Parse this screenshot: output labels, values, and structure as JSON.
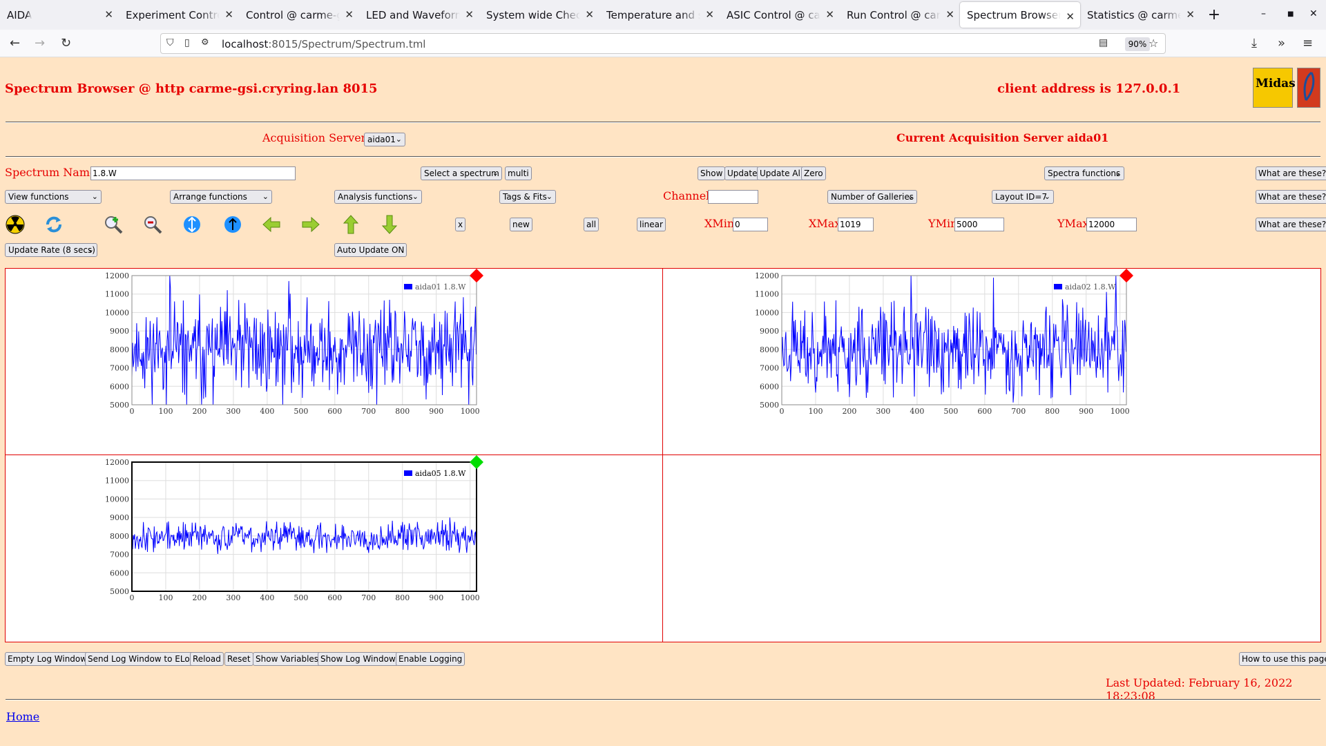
{
  "browser": {
    "tabs": [
      {
        "label": "AIDA",
        "active": false
      },
      {
        "label": "Experiment Control @ carme",
        "active": false
      },
      {
        "label": "Control @ carme-gsi",
        "active": false
      },
      {
        "label": "LED and Waveform control",
        "active": false
      },
      {
        "label": "System wide Checks @",
        "active": false
      },
      {
        "label": "Temperature and status",
        "active": false
      },
      {
        "label": "ASIC Control @ carme-gsi",
        "active": false
      },
      {
        "label": "Run Control @ carme-gsi",
        "active": false
      },
      {
        "label": "Spectrum Browser @ carme",
        "active": true
      },
      {
        "label": "Statistics @ carme-gsi",
        "active": false
      }
    ],
    "new_tab": "+",
    "url_host": "localhost",
    "url_rest": ":8015/Spectrum/Spectrum.tml",
    "zoom": "90%"
  },
  "header": {
    "title": "Spectrum Browser @ http carme-gsi.cryring.lan 8015",
    "client": "client address is 127.0.0.1",
    "logo_text": "Midas"
  },
  "servers": {
    "label": "Acquisition Servers",
    "selected": "aida01",
    "current": "Current Acquisition Server aida01"
  },
  "row1": {
    "spectrum_label": "Spectrum Name:",
    "spectrum_value": "1.8.W",
    "select_spectrum": "Select a spectrum",
    "multi": "multi",
    "show": "Show",
    "update": "Update",
    "update_all": "Update All",
    "zero": "Zero",
    "spectra_functions": "Spectra functions",
    "what": "What are these?"
  },
  "row2": {
    "view_functions": "View functions",
    "arrange_functions": "Arrange functions",
    "analysis_functions": "Analysis functions",
    "tags_fits": "Tags & Fits",
    "channel_label": "Channel:",
    "channel_value": "",
    "galleries": "Number of Galleries",
    "layout": "Layout ID=7",
    "what": "What are these?"
  },
  "row3": {
    "x": "x",
    "new": "new",
    "all": "all",
    "linear": "linear",
    "xmin_label": "XMin",
    "xmin": "0",
    "xmax_label": "XMax",
    "xmax": "1019",
    "ymin_label": "YMin",
    "ymin": "5000",
    "ymax_label": "YMax",
    "ymax": "12000",
    "what": "What are these?",
    "icons": [
      "radiation-icon",
      "refresh-icon",
      "zoom-in-icon",
      "zoom-out-icon",
      "expand-x-icon",
      "expand-y-icon",
      "arrow-left-icon",
      "arrow-right-icon",
      "arrow-up-icon",
      "arrow-down-icon"
    ]
  },
  "row4": {
    "update_rate": "Update Rate (8 secs)",
    "auto_update": "Auto Update ON"
  },
  "bottom": {
    "buttons": [
      "Empty Log Window",
      "Send Log Window to ELog",
      "Reload",
      "Reset",
      "Show Variables",
      "Show Log Window",
      "Enable Logging"
    ],
    "how_to": "How to use this page",
    "last_updated": "Last Updated: February 16, 2022 18:23:08",
    "home": "Home"
  },
  "colors": {
    "page_bg": "#ffe4c4",
    "accent_red": "#e60000",
    "series_blue": "#0000ff",
    "marker_red": "#ff0000",
    "marker_green": "#00dd00"
  },
  "chart_data": [
    {
      "type": "line",
      "legend": "aida01 1.8.W",
      "xlim": [
        0,
        1019
      ],
      "ylim": [
        5000,
        12000
      ],
      "xticks": [
        0,
        100,
        200,
        300,
        400,
        500,
        600,
        700,
        800,
        900,
        1000
      ],
      "yticks": [
        5000,
        6000,
        7000,
        8000,
        9000,
        10000,
        11000,
        12000
      ],
      "marker": "red",
      "mean": 8000,
      "spread": 1500,
      "seed": 11
    },
    {
      "type": "line",
      "legend": "aida02 1.8.W",
      "xlim": [
        0,
        1019
      ],
      "ylim": [
        5000,
        12000
      ],
      "xticks": [
        0,
        100,
        200,
        300,
        400,
        500,
        600,
        700,
        800,
        900,
        1000
      ],
      "yticks": [
        5000,
        6000,
        7000,
        8000,
        9000,
        10000,
        11000,
        12000
      ],
      "marker": "red",
      "mean": 8000,
      "spread": 1450,
      "seed": 23
    },
    {
      "type": "line",
      "legend": "aida05 1.8.W",
      "xlim": [
        0,
        1019
      ],
      "ylim": [
        5000,
        12000
      ],
      "xticks": [
        0,
        100,
        200,
        300,
        400,
        500,
        600,
        700,
        800,
        900,
        1000
      ],
      "yticks": [
        5000,
        6000,
        7000,
        8000,
        9000,
        10000,
        11000,
        12000
      ],
      "marker": "green",
      "mean": 7950,
      "spread": 480,
      "seed": 37
    }
  ]
}
